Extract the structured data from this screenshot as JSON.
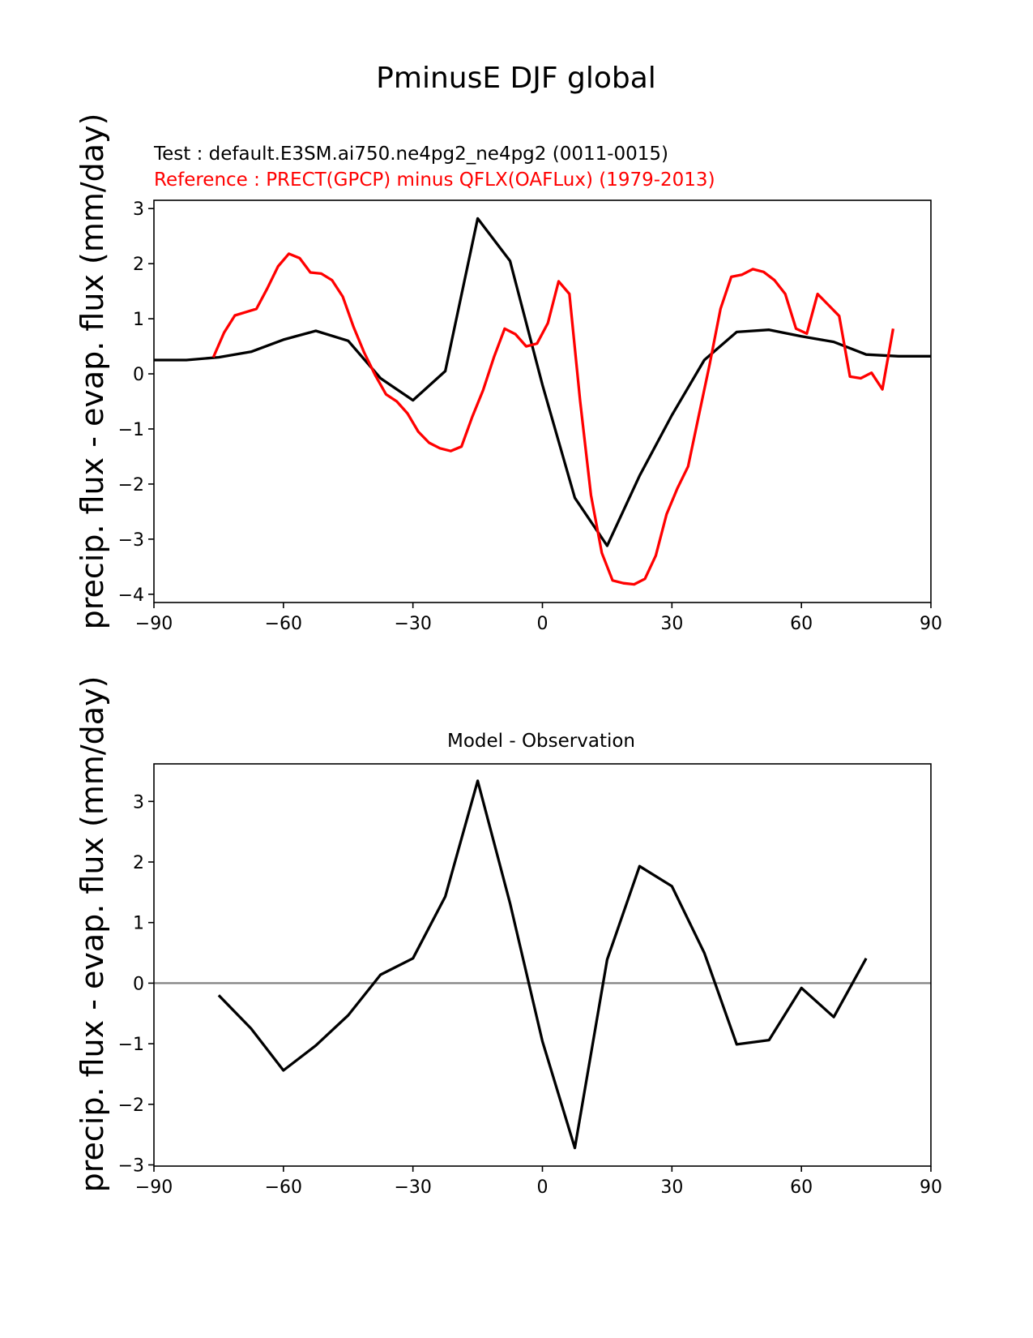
{
  "figure": {
    "title": "PminusE DJF global",
    "test_label": "Test : default.E3SM.ai750.ne4pg2_ne4pg2 (0011-0015)",
    "reference_label": "Reference : PRECT(GPCP) minus QFLX(OAFLux) (1979-2013)",
    "diff_title": "Model - Observation",
    "ylabel": "precip. flux - evap. flux (mm/day)"
  },
  "colors": {
    "test": "#000000",
    "reference": "#ff0000",
    "zero_line": "#808080"
  },
  "chart_data": [
    {
      "type": "line",
      "title": "",
      "xlabel": "",
      "ylabel": "precip. flux - evap. flux (mm/day)",
      "xlim": [
        -90,
        90
      ],
      "ylim": [
        -4.15,
        3.15
      ],
      "xticks": [
        -90,
        -60,
        -30,
        0,
        30,
        60,
        90
      ],
      "xtick_labels": [
        "−90",
        "−60",
        "−30",
        "0",
        "30",
        "60",
        "90"
      ],
      "yticks": [
        -4,
        -3,
        -2,
        -1,
        0,
        1,
        2,
        3
      ],
      "ytick_labels": [
        "−4",
        "−3",
        "−2",
        "−1",
        "0",
        "1",
        "2",
        "3"
      ],
      "grid": false,
      "series": [
        {
          "key": "test",
          "color": "#000000",
          "x": [
            -90,
            -82.5,
            -75,
            -67.5,
            -60,
            -52.5,
            -45,
            -37.5,
            -30,
            -22.5,
            -15,
            -7.5,
            0,
            7.5,
            15,
            22.5,
            30,
            37.5,
            45,
            52.5,
            60,
            67.5,
            75,
            82.5,
            90
          ],
          "y": [
            0.25,
            0.25,
            0.3,
            0.4,
            0.62,
            0.78,
            0.6,
            -0.08,
            -0.48,
            0.05,
            2.82,
            2.05,
            -0.2,
            -2.25,
            -3.12,
            -1.85,
            -0.75,
            0.25,
            0.76,
            0.8,
            0.68,
            0.58,
            0.35,
            0.32,
            0.32
          ]
        },
        {
          "key": "reference",
          "color": "#ff0000",
          "x": [
            -76.25,
            -73.75,
            -71.25,
            -68.75,
            -66.25,
            -63.75,
            -61.25,
            -58.75,
            -56.25,
            -53.75,
            -51.25,
            -48.75,
            -46.25,
            -43.75,
            -41.25,
            -38.75,
            -36.25,
            -33.75,
            -31.25,
            -28.75,
            -26.25,
            -23.75,
            -21.25,
            -18.75,
            -16.25,
            -13.75,
            -11.25,
            -8.75,
            -6.25,
            -3.75,
            -1.25,
            1.25,
            3.75,
            6.25,
            8.75,
            11.25,
            13.75,
            16.25,
            18.75,
            21.25,
            23.75,
            26.25,
            28.75,
            31.25,
            33.75,
            36.25,
            38.75,
            41.25,
            43.75,
            46.25,
            48.75,
            51.25,
            53.75,
            56.25,
            58.75,
            61.25,
            63.75,
            66.25,
            68.75,
            71.25,
            73.75,
            76.25,
            78.75,
            81.25
          ],
          "y": [
            0.3,
            0.75,
            1.06,
            1.12,
            1.18,
            1.55,
            1.95,
            2.18,
            2.1,
            1.84,
            1.82,
            1.7,
            1.4,
            0.85,
            0.38,
            -0.02,
            -0.37,
            -0.5,
            -0.72,
            -1.05,
            -1.25,
            -1.35,
            -1.4,
            -1.32,
            -0.78,
            -0.3,
            0.3,
            0.82,
            0.72,
            0.5,
            0.55,
            0.92,
            1.68,
            1.45,
            -0.5,
            -2.2,
            -3.25,
            -3.75,
            -3.8,
            -3.82,
            -3.72,
            -3.3,
            -2.55,
            -2.08,
            -1.68,
            -0.75,
            0.18,
            1.18,
            1.76,
            1.8,
            1.9,
            1.85,
            1.7,
            1.45,
            0.82,
            0.73,
            1.45,
            1.25,
            1.05,
            -0.05,
            -0.08,
            0.02,
            -0.28,
            0.82
          ]
        }
      ]
    },
    {
      "type": "line",
      "title": "Model - Observation",
      "xlabel": "",
      "ylabel": "precip. flux - evap. flux (mm/day)",
      "xlim": [
        -90,
        90
      ],
      "ylim": [
        -3.02,
        3.62
      ],
      "xticks": [
        -90,
        -60,
        -30,
        0,
        30,
        60,
        90
      ],
      "xtick_labels": [
        "−90",
        "−60",
        "−30",
        "0",
        "30",
        "60",
        "90"
      ],
      "yticks": [
        -3,
        -2,
        -1,
        0,
        1,
        2,
        3
      ],
      "ytick_labels": [
        "−3",
        "−2",
        "−1",
        "0",
        "1",
        "2",
        "3"
      ],
      "grid": false,
      "zero_line": true,
      "series": [
        {
          "key": "difference",
          "color": "#000000",
          "x": [
            -75,
            -67.5,
            -60,
            -52.5,
            -45,
            -37.5,
            -30,
            -22.5,
            -15,
            -7.5,
            0,
            7.5,
            15,
            22.5,
            30,
            37.5,
            45,
            52.5,
            60,
            67.5,
            75
          ],
          "y": [
            -0.2,
            -0.75,
            -1.44,
            -1.03,
            -0.53,
            0.14,
            0.41,
            1.43,
            3.34,
            1.32,
            -0.96,
            -2.72,
            0.39,
            1.93,
            1.6,
            0.5,
            -1.01,
            -0.94,
            -0.08,
            -0.56,
            0.41
          ]
        }
      ]
    }
  ]
}
